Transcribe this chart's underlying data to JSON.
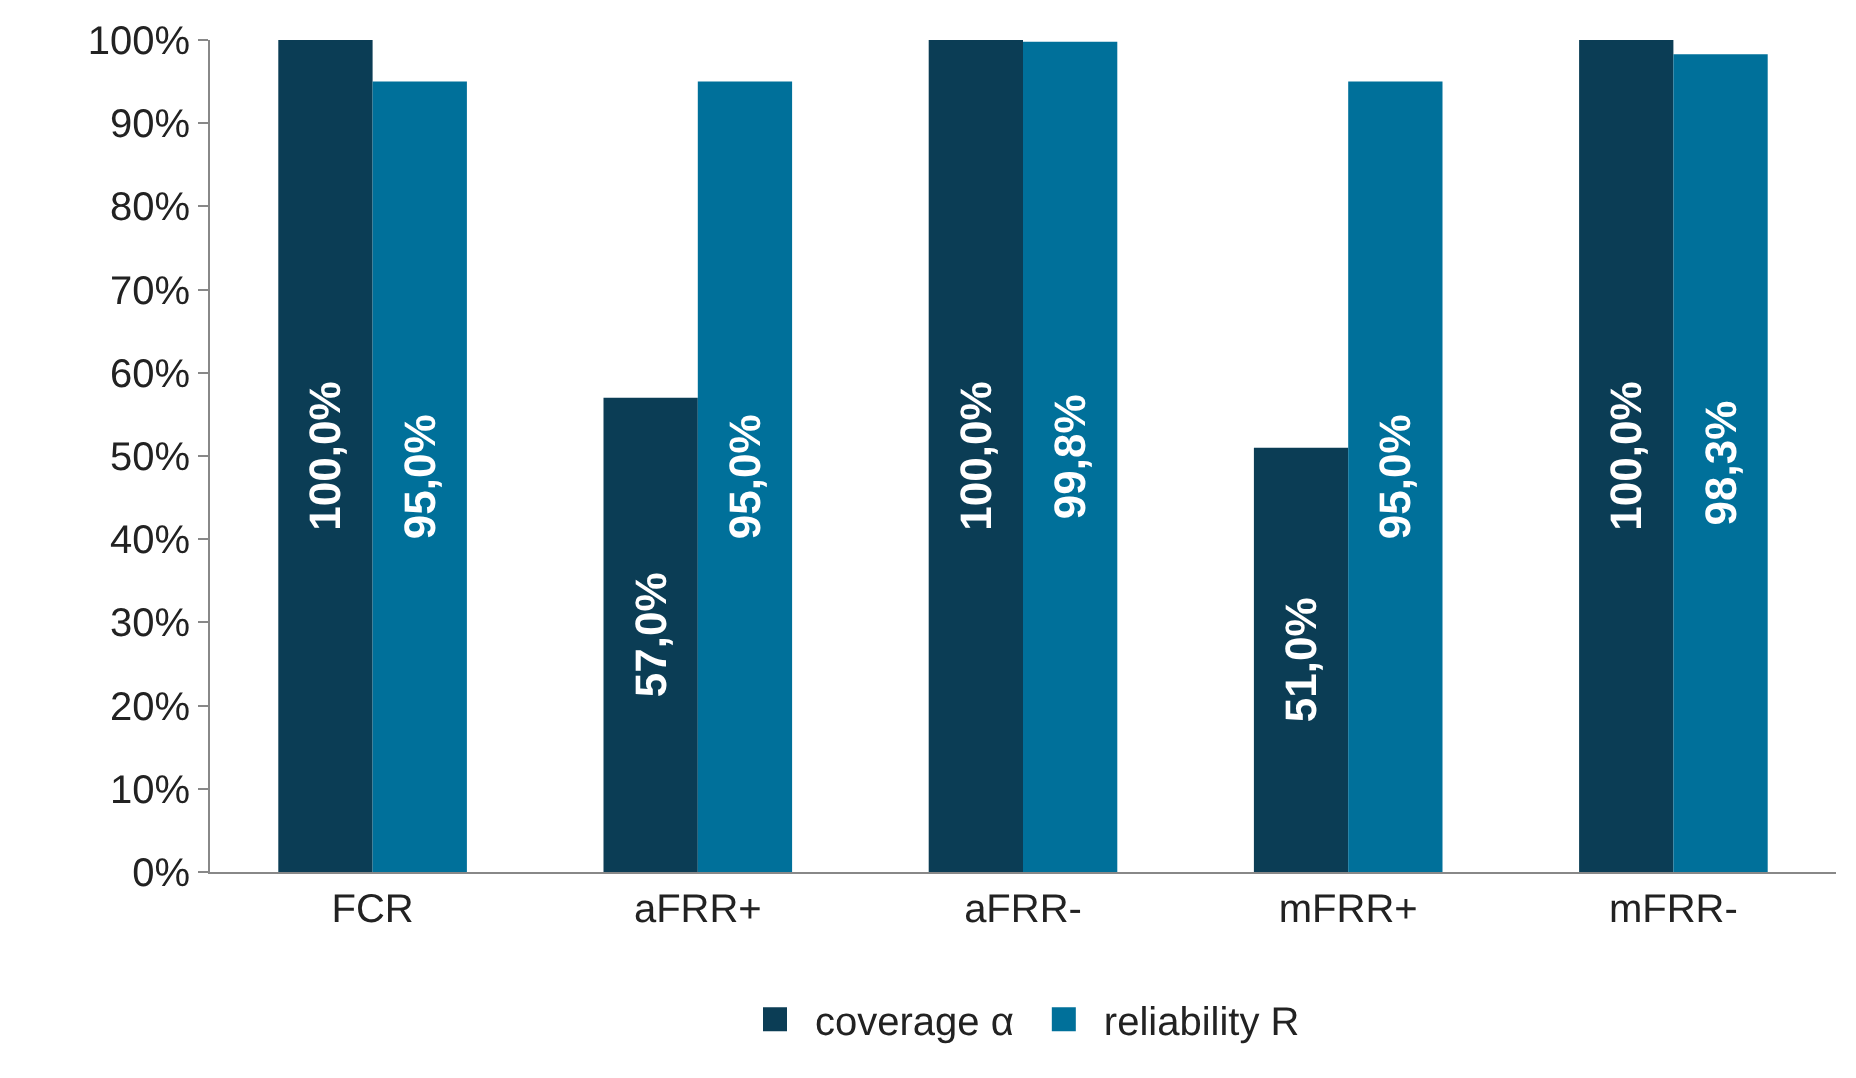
{
  "chart_data": {
    "type": "bar",
    "categories": [
      "FCR",
      "aFRR+",
      "aFRR-",
      "mFRR+",
      "mFRR-"
    ],
    "series": [
      {
        "name": "coverage α",
        "color": "#0b3d55",
        "values": [
          100,
          57,
          100,
          51,
          100
        ],
        "value_labels": [
          "100,0%",
          "57,0%",
          "100,0%",
          "51,0%",
          "100,0%"
        ]
      },
      {
        "name": "reliability R",
        "color": "#00709a",
        "values": [
          95,
          95,
          99.8,
          95,
          98.3
        ],
        "value_labels": [
          "95,0%",
          "95,0%",
          "99,8%",
          "95,0%",
          "98,3%"
        ]
      }
    ],
    "ylim": [
      0,
      100
    ],
    "yticks": [
      {
        "value": 0,
        "label": "0%"
      },
      {
        "value": 10,
        "label": "10%"
      },
      {
        "value": 20,
        "label": "20%"
      },
      {
        "value": 30,
        "label": "30%"
      },
      {
        "value": 40,
        "label": "40%"
      },
      {
        "value": 50,
        "label": "50%"
      },
      {
        "value": 60,
        "label": "60%"
      },
      {
        "value": 70,
        "label": "70%"
      },
      {
        "value": 80,
        "label": "80%"
      },
      {
        "value": 90,
        "label": "90%"
      },
      {
        "value": 100,
        "label": "100%"
      }
    ],
    "legend": "bottom"
  }
}
